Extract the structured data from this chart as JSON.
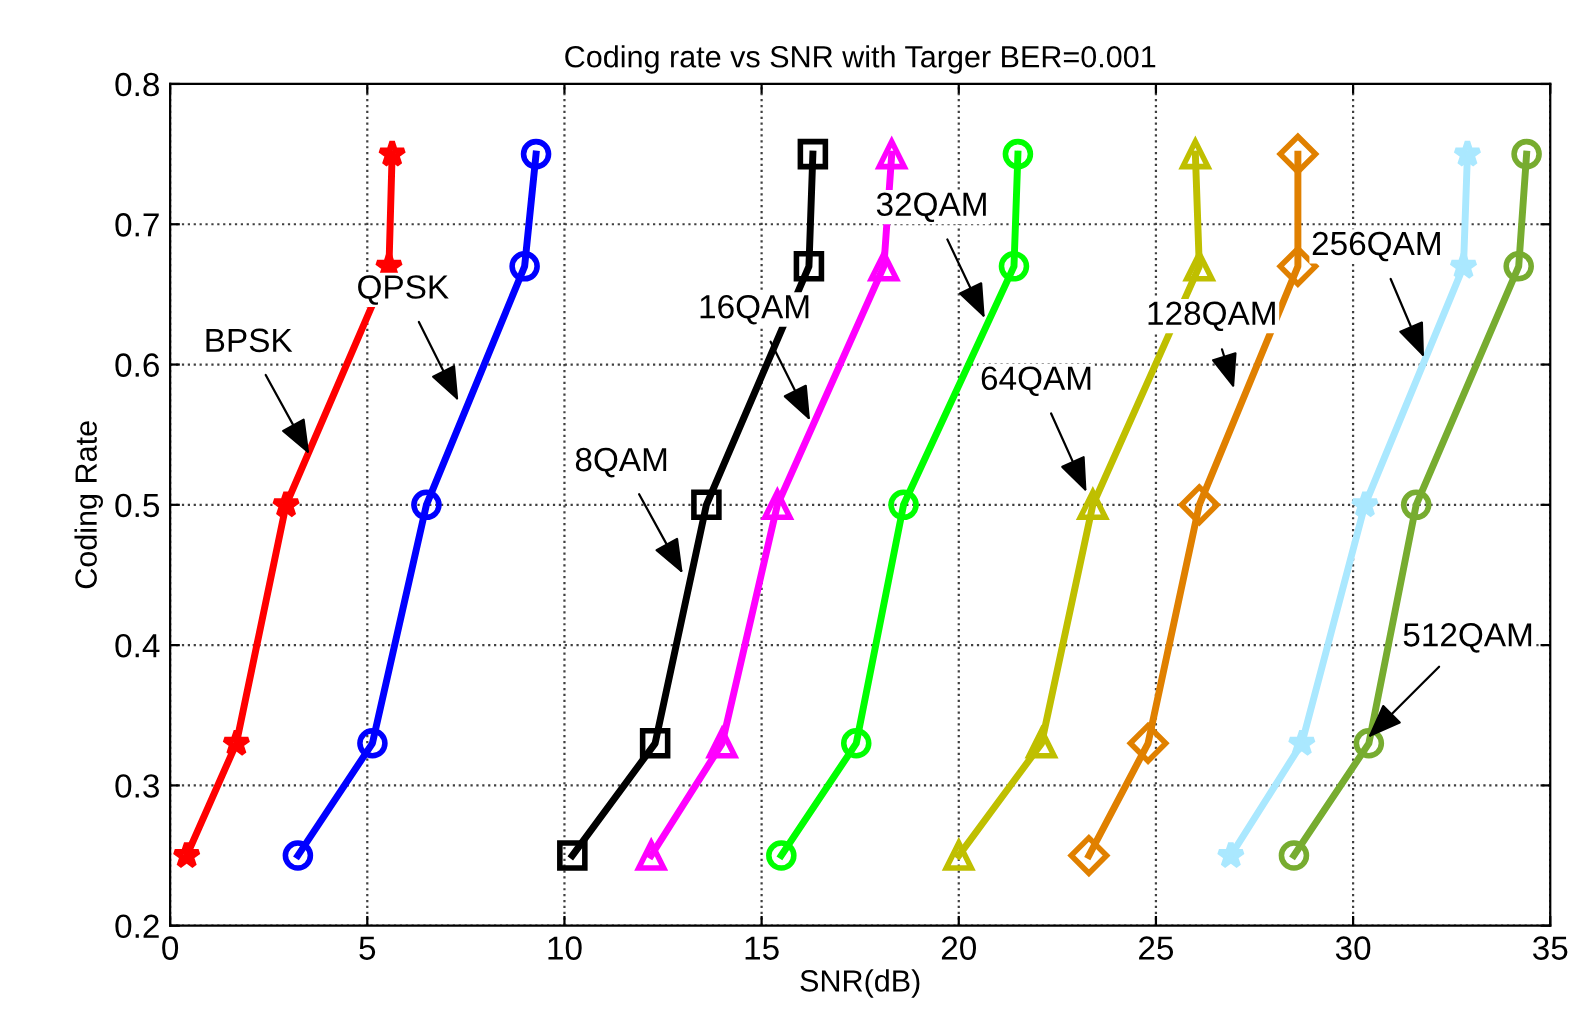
{
  "chart_data": {
    "type": "line",
    "title": "Coding rate vs SNR with Targer BER=0.001",
    "xlabel": "SNR(dB)",
    "ylabel": "Coding Rate",
    "xlim": [
      0,
      35
    ],
    "xticks": [
      0,
      5,
      10,
      15,
      20,
      25,
      30,
      35
    ],
    "ylim": [
      0.2,
      0.8
    ],
    "yticks": [
      0.2,
      0.3,
      0.4,
      0.5,
      0.6,
      0.7,
      0.8
    ],
    "grid": true,
    "series": [
      {
        "color": "#ff0000",
        "marker": "star",
        "x": [
          0.42,
          1.68,
          2.94,
          5.55,
          5.63
        ],
        "values": [
          0.25,
          0.33,
          0.5,
          0.67,
          0.75
        ]
      },
      {
        "color": "#0000ff",
        "marker": "circle",
        "x": [
          3.24,
          5.13,
          6.5,
          8.99,
          9.28
        ],
        "values": [
          0.25,
          0.33,
          0.5,
          0.67,
          0.75
        ]
      },
      {
        "color": "#000000",
        "marker": "square",
        "x": [
          10.2,
          12.3,
          13.6,
          16.2,
          16.3
        ],
        "values": [
          0.25,
          0.33,
          0.5,
          0.67,
          0.75
        ]
      },
      {
        "color": "#ff00ff",
        "marker": "triangle",
        "x": [
          12.2,
          14.0,
          15.4,
          18.1,
          18.3
        ],
        "values": [
          0.25,
          0.33,
          0.5,
          0.67,
          0.75
        ]
      },
      {
        "color": "#00ff00",
        "marker": "circle",
        "x": [
          15.5,
          17.4,
          18.6,
          21.4,
          21.5
        ],
        "values": [
          0.25,
          0.33,
          0.5,
          0.67,
          0.75
        ]
      },
      {
        "color": "#bfbf00",
        "marker": "triangle",
        "x": [
          20.0,
          22.1,
          23.4,
          26.1,
          26.0
        ],
        "values": [
          0.25,
          0.33,
          0.5,
          0.67,
          0.75
        ]
      },
      {
        "color": "#e08000",
        "marker": "diamond",
        "x": [
          23.3,
          24.8,
          26.1,
          28.6,
          28.6
        ],
        "values": [
          0.25,
          0.33,
          0.5,
          0.67,
          0.75
        ]
      },
      {
        "color": "#aae8ff",
        "marker": "star",
        "x": [
          26.9,
          28.7,
          30.3,
          32.8,
          32.9
        ],
        "values": [
          0.25,
          0.33,
          0.5,
          0.67,
          0.75
        ]
      },
      {
        "color": "#77ac30",
        "marker": "circle",
        "x": [
          28.5,
          30.4,
          31.6,
          34.2,
          34.4
        ],
        "values": [
          0.25,
          0.33,
          0.5,
          0.67,
          0.75
        ]
      }
    ],
    "annotations": [
      {
        "text": "BPSK",
        "x": 3.53,
        "y": 0.536
      },
      {
        "text": "QPSK",
        "x": 7.31,
        "y": 0.574
      },
      {
        "text": "8QAM",
        "x": 13.0,
        "y": 0.451
      },
      {
        "text": "16QAM",
        "x": 16.23,
        "y": 0.56
      },
      {
        "text": "32QAM",
        "x": 20.66,
        "y": 0.633
      },
      {
        "text": "64QAM",
        "x": 23.24,
        "y": 0.509
      },
      {
        "text": "128QAM",
        "x": 26.98,
        "y": 0.583
      },
      {
        "text": "256QAM",
        "x": 31.8,
        "y": 0.605
      },
      {
        "text": "512QAM",
        "x": 30.38,
        "y": 0.334
      }
    ]
  }
}
